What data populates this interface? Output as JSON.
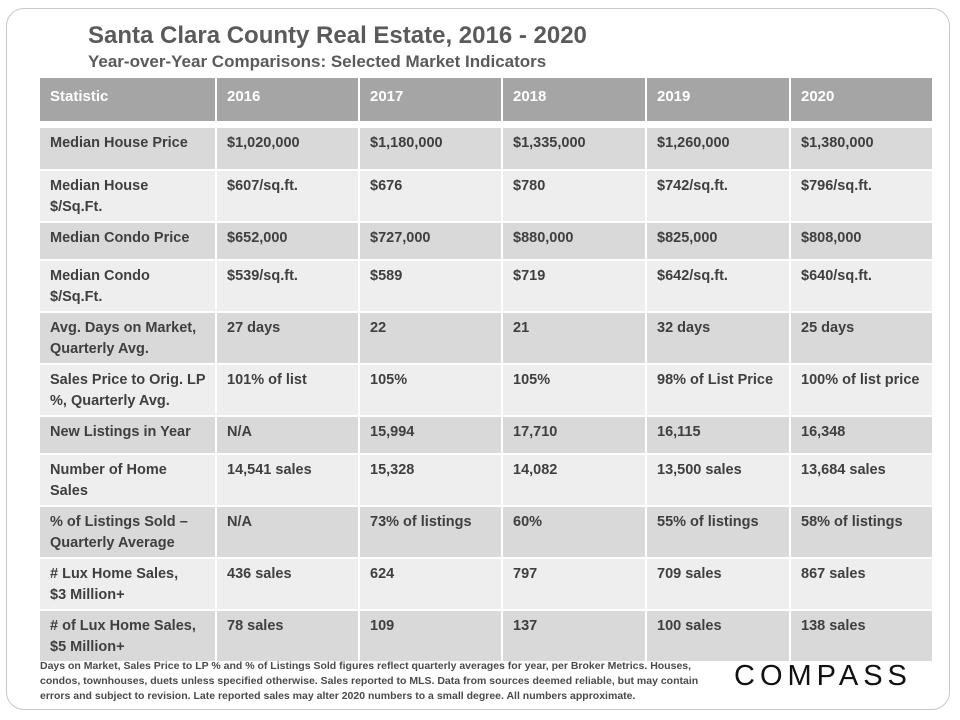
{
  "chart_data": {
    "type": "table",
    "title": "Santa Clara County Real Estate, 2016 - 2020",
    "subtitle": "Year-over-Year  Comparisons:  Selected Market Indicators",
    "columns": [
      "Statistic",
      "2016",
      "2017",
      "2018",
      "2019",
      "2020"
    ],
    "rows": [
      {
        "label": [
          "Median House Price"
        ],
        "values": [
          "$1,020,000",
          "$1,180,000",
          "$1,335,000",
          "$1,260,000",
          "$1,380,000"
        ]
      },
      {
        "label": [
          "Median House",
          "$/Sq.Ft."
        ],
        "values": [
          "$607/sq.ft.",
          "$676",
          "$780",
          "$742/sq.ft.",
          "$796/sq.ft."
        ]
      },
      {
        "label": [
          "Median Condo Price"
        ],
        "values": [
          "$652,000",
          "$727,000",
          "$880,000",
          "$825,000",
          "$808,000"
        ]
      },
      {
        "label": [
          "Median Condo",
          "$/Sq.Ft."
        ],
        "values": [
          "$539/sq.ft.",
          "$589",
          "$719",
          "$642/sq.ft.",
          "$640/sq.ft."
        ]
      },
      {
        "label": [
          "Avg. Days on Market,",
          "Quarterly Avg."
        ],
        "values": [
          "27 days",
          "22",
          "21",
          "32 days",
          "25 days"
        ]
      },
      {
        "label": [
          "Sales Price to Orig. LP",
          "%, Quarterly Avg."
        ],
        "values": [
          "101% of list",
          "105%",
          "105%",
          "98% of List Price",
          "100% of list price"
        ]
      },
      {
        "label": [
          "New Listings in Year"
        ],
        "values": [
          "N/A",
          "15,994",
          "17,710",
          "16,115",
          "16,348"
        ]
      },
      {
        "label": [
          "Number of Home",
          "Sales"
        ],
        "values": [
          "14,541 sales",
          "15,328",
          "14,082",
          "13,500 sales",
          "13,684 sales"
        ]
      },
      {
        "label": [
          "% of Listings Sold –",
          "Quarterly Average"
        ],
        "values": [
          "N/A",
          "73% of listings",
          "60%",
          "55% of listings",
          "58% of listings"
        ]
      },
      {
        "label": [
          "# Lux Home Sales,",
          "$3 Million+"
        ],
        "values": [
          "436 sales",
          "624",
          "797",
          "709 sales",
          "867 sales"
        ]
      },
      {
        "label": [
          "# of Lux Home Sales,",
          "$5 Million+"
        ],
        "values": [
          "78 sales",
          "109",
          "137",
          "100 sales",
          "138 sales"
        ]
      }
    ],
    "footnote": "Days on Market, Sales Price to LP % and % of Listings Sold figures reflect quarterly averages for year, per Broker Metrics. Houses, condos, townhouses, duets unless specified otherwise. Sales reported to MLS. Data from sources deemed reliable, but may contain errors and subject to revision. Late reported sales may alter 2020 numbers to a small degree. All numbers approximate."
  },
  "logo": {
    "text": "COMPASS"
  },
  "colors": {
    "header_bg": "#a5a5a5",
    "row_dark": "#d9d9d9",
    "row_light": "#eeeeee",
    "title": "#5a5a5a"
  }
}
